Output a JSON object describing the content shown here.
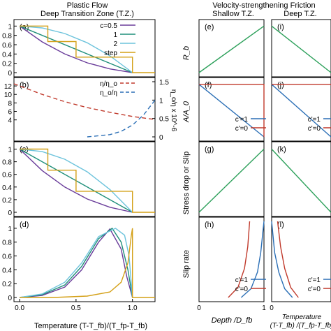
{
  "figure": {
    "left_title_1": "Plastic Flow",
    "left_title_2": "Deep Transition Zone (T.Z.)",
    "right_title": "Velocity-strengthening Friction",
    "right_sub_left": "Shallow T.Z.",
    "right_sub_right": "Deep T.Z.",
    "left_xlabel": "Temperature  (T-T_fb)/(T_fp-T_fb)",
    "right_xlabel_left": "Depth /D_fb",
    "right_xlabel_right_1": "Temperature",
    "right_xlabel_right_2": "(T-T_fb) /(T_fp-T_fb)",
    "ylabel_e": "R_b",
    "ylabel_f": "A/A_0",
    "ylabel_g": "Stress drop or Slip",
    "ylabel_h": "Slip rate",
    "ylabel_b_right": "η_o/η x 10^-6",
    "colors": {
      "c05": "#6a3d9a",
      "c1": "#1f8f7a",
      "c2": "#6cc3dc",
      "step": "#d4a017",
      "red": "#c0392b",
      "blue": "#2b6fb6",
      "green": "#2ca05a"
    }
  },
  "chart_data": [
    {
      "panel": "(a)",
      "type": "line",
      "xlim": [
        -0.05,
        1.2
      ],
      "ylim": [
        0,
        1.05
      ],
      "yticks": [
        "0",
        "0.2",
        "0.4",
        "0.6",
        "0.8",
        "1"
      ],
      "legend": [
        "c=0.5",
        "1",
        "2",
        "step"
      ],
      "legend_position": "top-right",
      "series": [
        {
          "name": "c=0.5",
          "color": "#6a3d9a",
          "x": [
            0,
            0.2,
            0.4,
            0.6,
            0.8,
            1.0
          ],
          "y": [
            1,
            0.66,
            0.4,
            0.21,
            0.08,
            0
          ]
        },
        {
          "name": "1",
          "color": "#1f8f7a",
          "x": [
            0,
            1.0
          ],
          "y": [
            1,
            0
          ]
        },
        {
          "name": "2",
          "color": "#6cc3dc",
          "x": [
            0,
            0.2,
            0.4,
            0.6,
            0.8,
            1.0
          ],
          "y": [
            1,
            0.96,
            0.84,
            0.64,
            0.36,
            0
          ]
        },
        {
          "name": "step",
          "color": "#d4a017",
          "step": true,
          "x": [
            0,
            0.25,
            0.25,
            0.5,
            0.5,
            0.75,
            0.75,
            1.0,
            1.0,
            1.2
          ],
          "y": [
            1,
            1,
            0.667,
            0.667,
            0.333,
            0.333,
            0.333,
            0.333,
            0,
            0
          ]
        }
      ]
    },
    {
      "panel": "(b)",
      "type": "line",
      "xlim": [
        -0.05,
        1.2
      ],
      "ylim": [
        0,
        13
      ],
      "yticks": [
        "4",
        "6",
        "8",
        "10",
        "12"
      ],
      "y2ticks": [
        "0",
        "0.5",
        "1",
        "1.5"
      ],
      "y2lim": [
        0,
        1.5
      ],
      "legend": [
        "η/η_o",
        "η_o/η"
      ],
      "legend_position": "top-right",
      "series": [
        {
          "name": "η/η_o",
          "color": "#c0392b",
          "dashed": true,
          "x": [
            -0.05,
            0.2,
            0.4,
            0.6,
            0.8,
            1.0,
            1.2
          ],
          "y": [
            12.5,
            10.0,
            8.3,
            6.9,
            5.8,
            4.8,
            4.1
          ]
        },
        {
          "name": "η_o/η",
          "color": "#2b6fb6",
          "dashed": true,
          "axis": "right",
          "x": [
            0.6,
            0.8,
            0.9,
            1.0,
            1.1,
            1.2
          ],
          "y": [
            0.0,
            0.06,
            0.15,
            0.32,
            0.6,
            1.0
          ]
        }
      ]
    },
    {
      "panel": "(c)",
      "type": "line",
      "xlim": [
        -0.05,
        1.2
      ],
      "ylim": [
        0,
        1.05
      ],
      "yticks": [
        "0",
        "0.2",
        "0.4",
        "0.6",
        "0.8",
        "1"
      ],
      "series": [
        {
          "color": "#6a3d9a",
          "x": [
            0,
            0.2,
            0.4,
            0.6,
            0.8,
            1.0
          ],
          "y": [
            1,
            0.66,
            0.4,
            0.21,
            0.08,
            0
          ]
        },
        {
          "color": "#1f8f7a",
          "x": [
            0,
            1.0
          ],
          "y": [
            1,
            0
          ]
        },
        {
          "color": "#6cc3dc",
          "x": [
            0,
            0.2,
            0.4,
            0.6,
            0.8,
            1.0
          ],
          "y": [
            1,
            0.96,
            0.84,
            0.64,
            0.36,
            0
          ]
        },
        {
          "color": "#d4a017",
          "step": true,
          "x": [
            0,
            0.25,
            0.25,
            0.5,
            0.5,
            0.75,
            0.75,
            1.0,
            1.0,
            1.2
          ],
          "y": [
            1,
            1,
            0.667,
            0.667,
            0.333,
            0.333,
            0.333,
            0.333,
            0,
            0
          ]
        }
      ]
    },
    {
      "panel": "(d)",
      "type": "line",
      "xlim": [
        -0.05,
        1.2
      ],
      "ylim": [
        0,
        1.1
      ],
      "yticks": [
        "0",
        "0.2",
        "0.4",
        "0.6",
        "0.8",
        "1"
      ],
      "xticks": [
        "0.0",
        "0.5",
        "1.0"
      ],
      "series": [
        {
          "color": "#6a3d9a",
          "x": [
            0,
            0.2,
            0.4,
            0.55,
            0.7,
            0.8,
            0.9,
            0.95,
            1.0
          ],
          "y": [
            0,
            0.03,
            0.15,
            0.4,
            0.8,
            0.99,
            0.7,
            0.3,
            0
          ]
        },
        {
          "color": "#1f8f7a",
          "x": [
            0,
            0.2,
            0.4,
            0.55,
            0.7,
            0.82,
            0.9,
            0.96,
            1.0
          ],
          "y": [
            0,
            0.04,
            0.18,
            0.45,
            0.85,
            1.0,
            0.8,
            0.4,
            0
          ]
        },
        {
          "color": "#6cc3dc",
          "x": [
            0,
            0.2,
            0.4,
            0.55,
            0.7,
            0.85,
            0.93,
            0.97,
            1.0
          ],
          "y": [
            0,
            0.05,
            0.22,
            0.5,
            0.88,
            1.0,
            0.9,
            0.6,
            0
          ]
        },
        {
          "color": "#d4a017",
          "x": [
            0,
            0.3,
            0.6,
            0.8,
            0.9,
            0.96,
            0.99,
            1.0,
            1.0,
            1.2
          ],
          "y": [
            0,
            0,
            0.02,
            0.08,
            0.22,
            0.5,
            0.9,
            1.0,
            0,
            0
          ]
        }
      ]
    },
    {
      "panel": "(e)",
      "type": "line",
      "xlim": [
        0,
        1
      ],
      "ylim": [
        0,
        1.05
      ],
      "series": [
        {
          "color": "#2ca05a",
          "x": [
            0,
            1,
            1.1
          ],
          "y": [
            0,
            1,
            1
          ]
        }
      ]
    },
    {
      "panel": "(f)",
      "type": "line",
      "xlim": [
        0,
        1
      ],
      "ylim": [
        0,
        1.05
      ],
      "legend": [
        "c'=1",
        "c'=0"
      ],
      "legend_position": "bottom-right",
      "series": [
        {
          "name": "c'=1",
          "color": "#2b6fb6",
          "x": [
            0,
            1
          ],
          "y": [
            1,
            0
          ]
        },
        {
          "name": "c'=0",
          "color": "#c0392b",
          "step": true,
          "x": [
            0,
            1,
            1
          ],
          "y": [
            1,
            1,
            0
          ]
        }
      ]
    },
    {
      "panel": "(g)",
      "type": "line",
      "xlim": [
        0,
        1
      ],
      "ylim": [
        0,
        1.05
      ],
      "series": [
        {
          "color": "#2ca05a",
          "x": [
            0,
            1,
            1.1
          ],
          "y": [
            0,
            1,
            1
          ]
        }
      ]
    },
    {
      "panel": "(h)",
      "type": "line",
      "xlim": [
        0,
        1
      ],
      "ylim": [
        0,
        1.05
      ],
      "xticks": [
        "0",
        "1"
      ],
      "legend": [
        "c'=1",
        "c'=0"
      ],
      "legend_position": "bottom-right",
      "series": [
        {
          "name": "c'=1",
          "color": "#2b6fb6",
          "x": [
            0.65,
            0.8,
            0.9,
            0.95,
            1.0
          ],
          "y": [
            0,
            0.12,
            0.35,
            0.62,
            1.05
          ]
        },
        {
          "name": "c'=0",
          "color": "#c0392b",
          "x": [
            0.45,
            0.6,
            0.7,
            0.75,
            0.78
          ],
          "y": [
            0,
            0.14,
            0.4,
            0.7,
            1.05
          ]
        }
      ]
    },
    {
      "panel": "(i)",
      "type": "line",
      "xlim": [
        0,
        1
      ],
      "ylim": [
        0,
        1.05
      ],
      "series": [
        {
          "color": "#2ca05a",
          "x": [
            -0.1,
            0,
            1
          ],
          "y": [
            1,
            1,
            0
          ]
        }
      ]
    },
    {
      "panel": "(j)",
      "type": "line",
      "xlim": [
        0,
        1
      ],
      "ylim": [
        0,
        1.05
      ],
      "legend": [
        "c'=1",
        "c'=0"
      ],
      "legend_position": "bottom-right",
      "series": [
        {
          "name": "c'=1",
          "color": "#2b6fb6",
          "x": [
            0,
            1
          ],
          "y": [
            1,
            0
          ]
        },
        {
          "name": "c'=0",
          "color": "#c0392b",
          "x": [
            0,
            1
          ],
          "y": [
            1,
            1
          ]
        }
      ]
    },
    {
      "panel": "(k)",
      "type": "line",
      "xlim": [
        0,
        1
      ],
      "ylim": [
        0,
        1.05
      ],
      "series": [
        {
          "color": "#2ca05a",
          "x": [
            -0.1,
            0,
            1
          ],
          "y": [
            1,
            1,
            0
          ]
        }
      ]
    },
    {
      "panel": "(l)",
      "type": "line",
      "xlim": [
        0,
        1
      ],
      "ylim": [
        0,
        1.05
      ],
      "xticks": [
        "0"
      ],
      "legend": [
        "c'=1",
        "c'=0"
      ],
      "legend_position": "bottom-right",
      "series": [
        {
          "name": "c'=1",
          "color": "#2b6fb6",
          "x": [
            0,
            0.05,
            0.12,
            0.22,
            0.35
          ],
          "y": [
            1.05,
            0.62,
            0.35,
            0.12,
            0
          ]
        },
        {
          "name": "c'=0",
          "color": "#c0392b",
          "x": [
            0.1,
            0.15,
            0.22,
            0.32,
            0.45
          ],
          "y": [
            1.05,
            0.7,
            0.4,
            0.14,
            0
          ]
        }
      ]
    }
  ]
}
